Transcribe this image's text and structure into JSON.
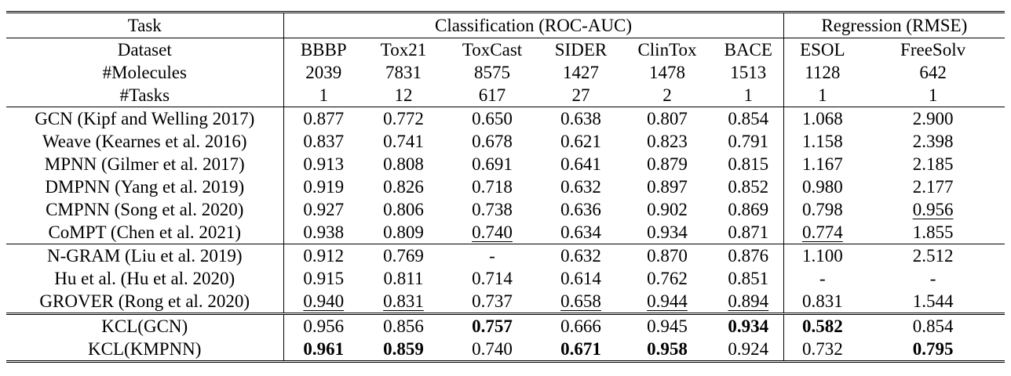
{
  "table": {
    "header": {
      "task_label": "Task",
      "classification_label": "Classification (ROC-AUC)",
      "regression_label": "Regression (RMSE)",
      "dataset_label": "Dataset",
      "molecules_label": "#Molecules",
      "tasks_label": "#Tasks",
      "datasets": [
        "BBBP",
        "Tox21",
        "ToxCast",
        "SIDER",
        "ClinTox",
        "BACE",
        "ESOL",
        "FreeSolv"
      ],
      "molecules": [
        "2039",
        "7831",
        "8575",
        "1427",
        "1478",
        "1513",
        "1128",
        "642"
      ],
      "tasks": [
        "1",
        "12",
        "617",
        "27",
        "2",
        "1",
        "1",
        "1"
      ]
    },
    "rows": [
      {
        "model": "GCN (Kipf and Welling 2017)",
        "values": [
          "0.877",
          "0.772",
          "0.650",
          "0.638",
          "0.807",
          "0.854",
          "1.068",
          "2.900"
        ]
      },
      {
        "model": "Weave (Kearnes et al. 2016)",
        "values": [
          "0.837",
          "0.741",
          "0.678",
          "0.621",
          "0.823",
          "0.791",
          "1.158",
          "2.398"
        ]
      },
      {
        "model": "MPNN (Gilmer et al. 2017)",
        "values": [
          "0.913",
          "0.808",
          "0.691",
          "0.641",
          "0.879",
          "0.815",
          "1.167",
          "2.185"
        ]
      },
      {
        "model": "DMPNN (Yang et al. 2019)",
        "values": [
          "0.919",
          "0.826",
          "0.718",
          "0.632",
          "0.897",
          "0.852",
          "0.980",
          "2.177"
        ]
      },
      {
        "model": "CMPNN (Song et al. 2020)",
        "values": [
          "0.927",
          "0.806",
          "0.738",
          "0.636",
          "0.902",
          "0.869",
          "0.798",
          "0.956"
        ]
      },
      {
        "model": "CoMPT (Chen et al. 2021)",
        "values": [
          "0.938",
          "0.809",
          "0.740",
          "0.634",
          "0.934",
          "0.871",
          "0.774",
          "1.855"
        ]
      },
      {
        "model": "N-GRAM (Liu et al. 2019)",
        "values": [
          "0.912",
          "0.769",
          "-",
          "0.632",
          "0.870",
          "0.876",
          "1.100",
          "2.512"
        ]
      },
      {
        "model": "Hu et al. (Hu et al. 2020)",
        "values": [
          "0.915",
          "0.811",
          "0.714",
          "0.614",
          "0.762",
          "0.851",
          "-",
          "-"
        ]
      },
      {
        "model": "GROVER (Rong et al. 2020)",
        "values": [
          "0.940",
          "0.831",
          "0.737",
          "0.658",
          "0.944",
          "0.894",
          "0.831",
          "1.544"
        ]
      },
      {
        "model": "KCL(GCN)",
        "values": [
          "0.956",
          "0.856",
          "0.757",
          "0.666",
          "0.945",
          "0.934",
          "0.582",
          "0.854"
        ]
      },
      {
        "model": "KCL(KMPNN)",
        "values": [
          "0.961",
          "0.859",
          "0.740",
          "0.671",
          "0.958",
          "0.924",
          "0.732",
          "0.795"
        ]
      }
    ]
  }
}
